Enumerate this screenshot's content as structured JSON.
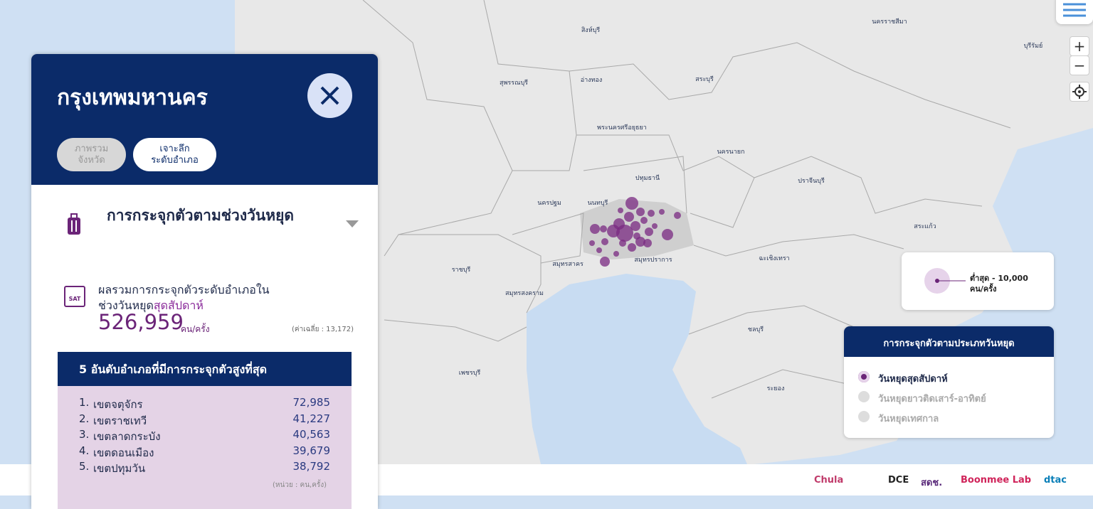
{
  "map": {
    "labels": [
      "สิงห์บุรี",
      "นครราชสีมา",
      "บุรีรัมย์",
      "สุพรรณบุรี",
      "อ่างทอง",
      "สระบุรี",
      "พระนครศรีอยุธยา",
      "นครนายก",
      "ปทุมธานี",
      "ปราจีนบุรี",
      "นครปฐม",
      "นนทบุรี",
      "สระแก้ว",
      "ราชบุรี",
      "สมุทรสาคร",
      "สมุทรปราการ",
      "ฉะเชิงเทรา",
      "สมุทรสงคราม",
      "ชลบุรี",
      "เพชรบุรี",
      "ระยอง"
    ]
  },
  "panel": {
    "title": "กรุงเทพมหานคร",
    "tabs": [
      [
        "ภาพรวม",
        "จังหวัด"
      ],
      [
        "เจาะลึก",
        "ระดับอำเภอ"
      ]
    ],
    "section_title": "การกระจุกตัวตามช่วงวันหยุด",
    "summary": {
      "icon": "SAT",
      "line1": "ผลรวมการกระจุกตัวระดับอำเภอใน",
      "line2_prefix": "ช่วงวันหยุด",
      "line2_highlight": "สุดสัปดาห์",
      "total": "526,959",
      "unit": "คน/ครั้ง",
      "average": "(ค่าเฉลี่ย : 13,172)"
    },
    "top5": {
      "title": "5 อันดับอำเภอที่มีการกระจุกตัวสูงที่สุด",
      "rows": [
        [
          "1.",
          "เขตจตุจักร",
          "72,985"
        ],
        [
          "2.",
          "เขตราชเทวี",
          "41,227"
        ],
        [
          "3.",
          "เขตลาดกระบัง",
          "40,563"
        ],
        [
          "4.",
          "เขตดอนเมือง",
          "39,679"
        ],
        [
          "5.",
          "เขตปทุมวัน",
          "38,792"
        ]
      ],
      "note": "(หน่วย : คน,ครั้ง)"
    }
  },
  "size_legend": {
    "label": "ต่ำสุด - 10,000",
    "unit": "คน/ครั้ง"
  },
  "holiday_legend": {
    "title": "การกระจุกตัวตามประเภทวันหยุด",
    "options": [
      "วันหยุดสุดสัปดาห์",
      "วันหยุดยาวติดเสาร์-อาทิตย์",
      "วันหยุดเทศกาล"
    ]
  },
  "footer": {
    "logos": [
      "Chula",
      "DCE",
      "สดช.",
      "Boonmee Lab",
      "dtac"
    ]
  }
}
